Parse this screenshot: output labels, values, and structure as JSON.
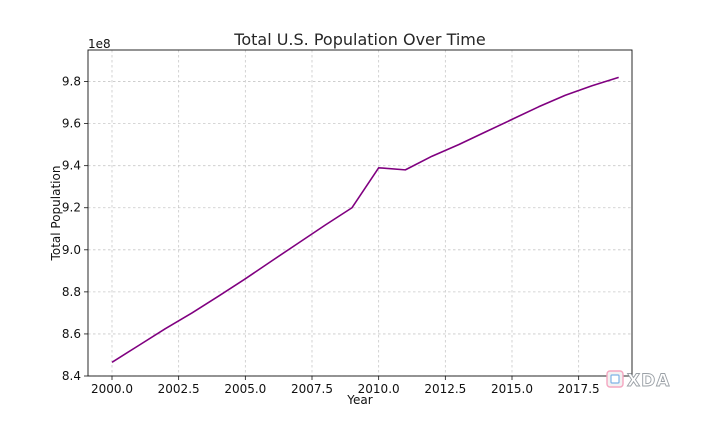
{
  "chart_data": {
    "type": "line",
    "title": "Total U.S. Population Over Time",
    "xlabel": "Year",
    "ylabel": "Total Population",
    "y_offset_label": "1e8",
    "xlim": [
      1999.1,
      2019.5
    ],
    "ylim": [
      8.4,
      9.95
    ],
    "x_ticks": [
      2000.0,
      2002.5,
      2005.0,
      2007.5,
      2010.0,
      2012.5,
      2015.0,
      2017.5
    ],
    "x_tick_labels": [
      "2000.0",
      "2002.5",
      "2005.0",
      "2007.5",
      "2010.0",
      "2012.5",
      "2015.0",
      "2017.5"
    ],
    "y_ticks": [
      8.4,
      8.6,
      8.8,
      9.0,
      9.2,
      9.4,
      9.6,
      9.8
    ],
    "y_tick_labels": [
      "8.4",
      "8.6",
      "8.8",
      "9.0",
      "9.2",
      "9.4",
      "9.6",
      "9.8"
    ],
    "grid": true,
    "series": [
      {
        "color": "#800080",
        "x": [
          2000,
          2001,
          2002,
          2003,
          2004,
          2005,
          2006,
          2007,
          2008,
          2009,
          2010,
          2011,
          2012,
          2013,
          2014,
          2015,
          2016,
          2017,
          2018,
          2019
        ],
        "y": [
          8.465,
          8.545,
          8.625,
          8.7,
          8.78,
          8.862,
          8.948,
          9.033,
          9.118,
          9.2,
          9.39,
          9.38,
          9.445,
          9.5,
          9.56,
          9.62,
          9.68,
          9.735,
          9.78,
          9.82
        ]
      }
    ]
  },
  "watermark": {
    "text": "XDA"
  }
}
